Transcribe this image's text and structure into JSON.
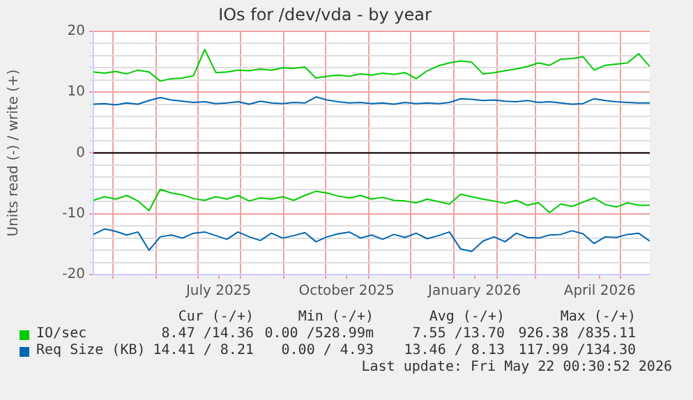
{
  "chart_data": {
    "type": "line",
    "title": "IOs for /dev/vda - by year",
    "ylabel": "Units read (-) / write (+)",
    "x": [
      "2025-04-17",
      "2025-04-25",
      "2025-05-03",
      "2025-05-11",
      "2025-05-19",
      "2025-05-27",
      "2025-06-04",
      "2025-06-12",
      "2025-06-20",
      "2025-06-28",
      "2025-07-06",
      "2025-07-14",
      "2025-07-22",
      "2025-07-30",
      "2025-08-07",
      "2025-08-15",
      "2025-08-23",
      "2025-08-31",
      "2025-09-08",
      "2025-09-16",
      "2025-09-24",
      "2025-10-02",
      "2025-10-10",
      "2025-10-18",
      "2025-10-26",
      "2025-11-03",
      "2025-11-11",
      "2025-11-19",
      "2025-11-27",
      "2025-12-05",
      "2025-12-13",
      "2025-12-21",
      "2025-12-29",
      "2026-01-06",
      "2026-01-14",
      "2026-01-22",
      "2026-01-30",
      "2026-02-07",
      "2026-02-15",
      "2026-02-23",
      "2026-03-03",
      "2026-03-11",
      "2026-03-19",
      "2026-03-27",
      "2026-04-04",
      "2026-04-12",
      "2026-04-20",
      "2026-04-28",
      "2026-05-06",
      "2026-05-14",
      "2026-05-22"
    ],
    "series": [
      {
        "name": "IO/sec",
        "color": "#00cc00",
        "values": [
          13.3,
          13.1,
          13.4,
          13.0,
          13.6,
          13.3,
          11.8,
          12.2,
          12.3,
          12.7,
          17.0,
          13.2,
          13.3,
          13.6,
          13.5,
          13.8,
          13.6,
          14.0,
          13.9,
          14.1,
          12.3,
          12.6,
          12.8,
          12.6,
          13.0,
          12.8,
          13.1,
          12.9,
          13.2,
          12.2,
          13.5,
          14.3,
          14.8,
          15.1,
          14.9,
          13.0,
          13.2,
          13.5,
          13.8,
          14.2,
          14.8,
          14.4,
          15.4,
          15.5,
          15.8,
          13.6,
          14.4,
          14.6,
          14.8,
          16.3,
          14.2
        ]
      },
      {
        "color": "#00cc00",
        "values": [
          -7.8,
          -7.2,
          -7.6,
          -7.0,
          -7.9,
          -9.5,
          -6.0,
          -6.6,
          -6.9,
          -7.5,
          -7.8,
          -7.2,
          -7.6,
          -7.0,
          -7.9,
          -7.4,
          -7.6,
          -7.2,
          -7.8,
          -7.0,
          -6.3,
          -6.6,
          -7.1,
          -7.4,
          -7.0,
          -7.6,
          -7.3,
          -7.8,
          -7.9,
          -8.2,
          -7.6,
          -8.0,
          -8.4,
          -6.8,
          -7.2,
          -7.6,
          -7.9,
          -8.3,
          -7.8,
          -8.6,
          -8.2,
          -9.8,
          -8.4,
          -8.8,
          -8.1,
          -7.4,
          -8.5,
          -8.9,
          -8.2,
          -8.6,
          -8.6
        ]
      },
      {
        "name": "Req Size (KB)",
        "color": "#0066b3",
        "values": [
          8.0,
          8.1,
          7.9,
          8.2,
          8.0,
          8.6,
          9.1,
          8.7,
          8.5,
          8.3,
          8.4,
          8.1,
          8.2,
          8.4,
          8.0,
          8.5,
          8.2,
          8.1,
          8.3,
          8.2,
          9.2,
          8.7,
          8.4,
          8.2,
          8.3,
          8.1,
          8.2,
          8.0,
          8.3,
          8.1,
          8.2,
          8.1,
          8.3,
          8.9,
          8.8,
          8.6,
          8.7,
          8.5,
          8.4,
          8.6,
          8.3,
          8.4,
          8.2,
          8.0,
          8.1,
          8.9,
          8.6,
          8.4,
          8.3,
          8.2,
          8.2
        ]
      },
      {
        "color": "#0066b3",
        "values": [
          -13.4,
          -12.5,
          -12.9,
          -13.5,
          -13.0,
          -16.0,
          -13.8,
          -13.5,
          -14.0,
          -13.2,
          -13.0,
          -13.6,
          -14.2,
          -13.0,
          -13.8,
          -14.4,
          -13.2,
          -14.0,
          -13.6,
          -13.1,
          -14.6,
          -13.8,
          -13.3,
          -13.0,
          -14.0,
          -13.5,
          -14.2,
          -13.4,
          -13.9,
          -13.2,
          -14.1,
          -13.6,
          -13.0,
          -15.8,
          -16.2,
          -14.5,
          -13.8,
          -14.6,
          -13.2,
          -13.9,
          -14.0,
          -13.5,
          -13.4,
          -12.8,
          -13.3,
          -14.9,
          -13.8,
          -13.9,
          -13.4,
          -13.2,
          -14.5
        ]
      }
    ],
    "xlim": [
      "2025-04-17",
      "2026-05-22"
    ],
    "xticks": [
      {
        "value": "2025-05-01",
        "label": null
      },
      {
        "value": "2025-06-01",
        "label": null
      },
      {
        "value": "2025-07-01",
        "label": null
      },
      {
        "value": "2025-07-16",
        "label": "July 2025"
      },
      {
        "value": "2025-08-01",
        "label": null
      },
      {
        "value": "2025-09-01",
        "label": null
      },
      {
        "value": "2025-10-01",
        "label": null
      },
      {
        "value": "2025-10-16",
        "label": "October 2025"
      },
      {
        "value": "2025-11-01",
        "label": null
      },
      {
        "value": "2025-12-01",
        "label": null
      },
      {
        "value": "2026-01-01",
        "label": null
      },
      {
        "value": "2026-01-16",
        "label": "January 2026"
      },
      {
        "value": "2026-02-01",
        "label": null
      },
      {
        "value": "2026-03-01",
        "label": null
      },
      {
        "value": "2026-04-01",
        "label": null
      },
      {
        "value": "2026-04-16",
        "label": "April 2026"
      },
      {
        "value": "2026-05-01",
        "label": null
      }
    ],
    "ylim": [
      -20,
      20
    ],
    "yticks": [
      -20,
      {
        "value": -18,
        "label": null
      },
      {
        "value": -16,
        "label": null
      },
      {
        "value": -14,
        "label": null
      },
      {
        "value": -12,
        "label": null
      },
      -10,
      {
        "value": -8,
        "label": null
      },
      {
        "value": -6,
        "label": null
      },
      {
        "value": -4,
        "label": null
      },
      {
        "value": -2,
        "label": null
      },
      0,
      {
        "value": 2,
        "label": null
      },
      {
        "value": 4,
        "label": null
      },
      {
        "value": 6,
        "label": null
      },
      {
        "value": 8,
        "label": null
      },
      10,
      {
        "value": 12,
        "label": null
      },
      {
        "value": 14,
        "label": null
      },
      {
        "value": 16,
        "label": null
      },
      {
        "value": 18,
        "label": null
      },
      20
    ],
    "grid": true,
    "legend": "bottom",
    "marker": "none",
    "line_style": "solid",
    "ref_lines": [
      {
        "axis": "y",
        "value": 0,
        "color": "#000000"
      }
    ],
    "annotations": [
      "Cur (-/+)",
      "Min (-/+)",
      "Avg (-/+)",
      "Max (-/+)",
      "8.47 /14.36",
      "0.00 /528.99m",
      "7.55 /13.70",
      "926.38 /835.11",
      "14.41 / 8.21",
      "0.00 / 4.93",
      "13.46 / 8.13",
      "117.99 /134.30",
      "Last update: Fri May 22 00:30:52 2026"
    ]
  }
}
